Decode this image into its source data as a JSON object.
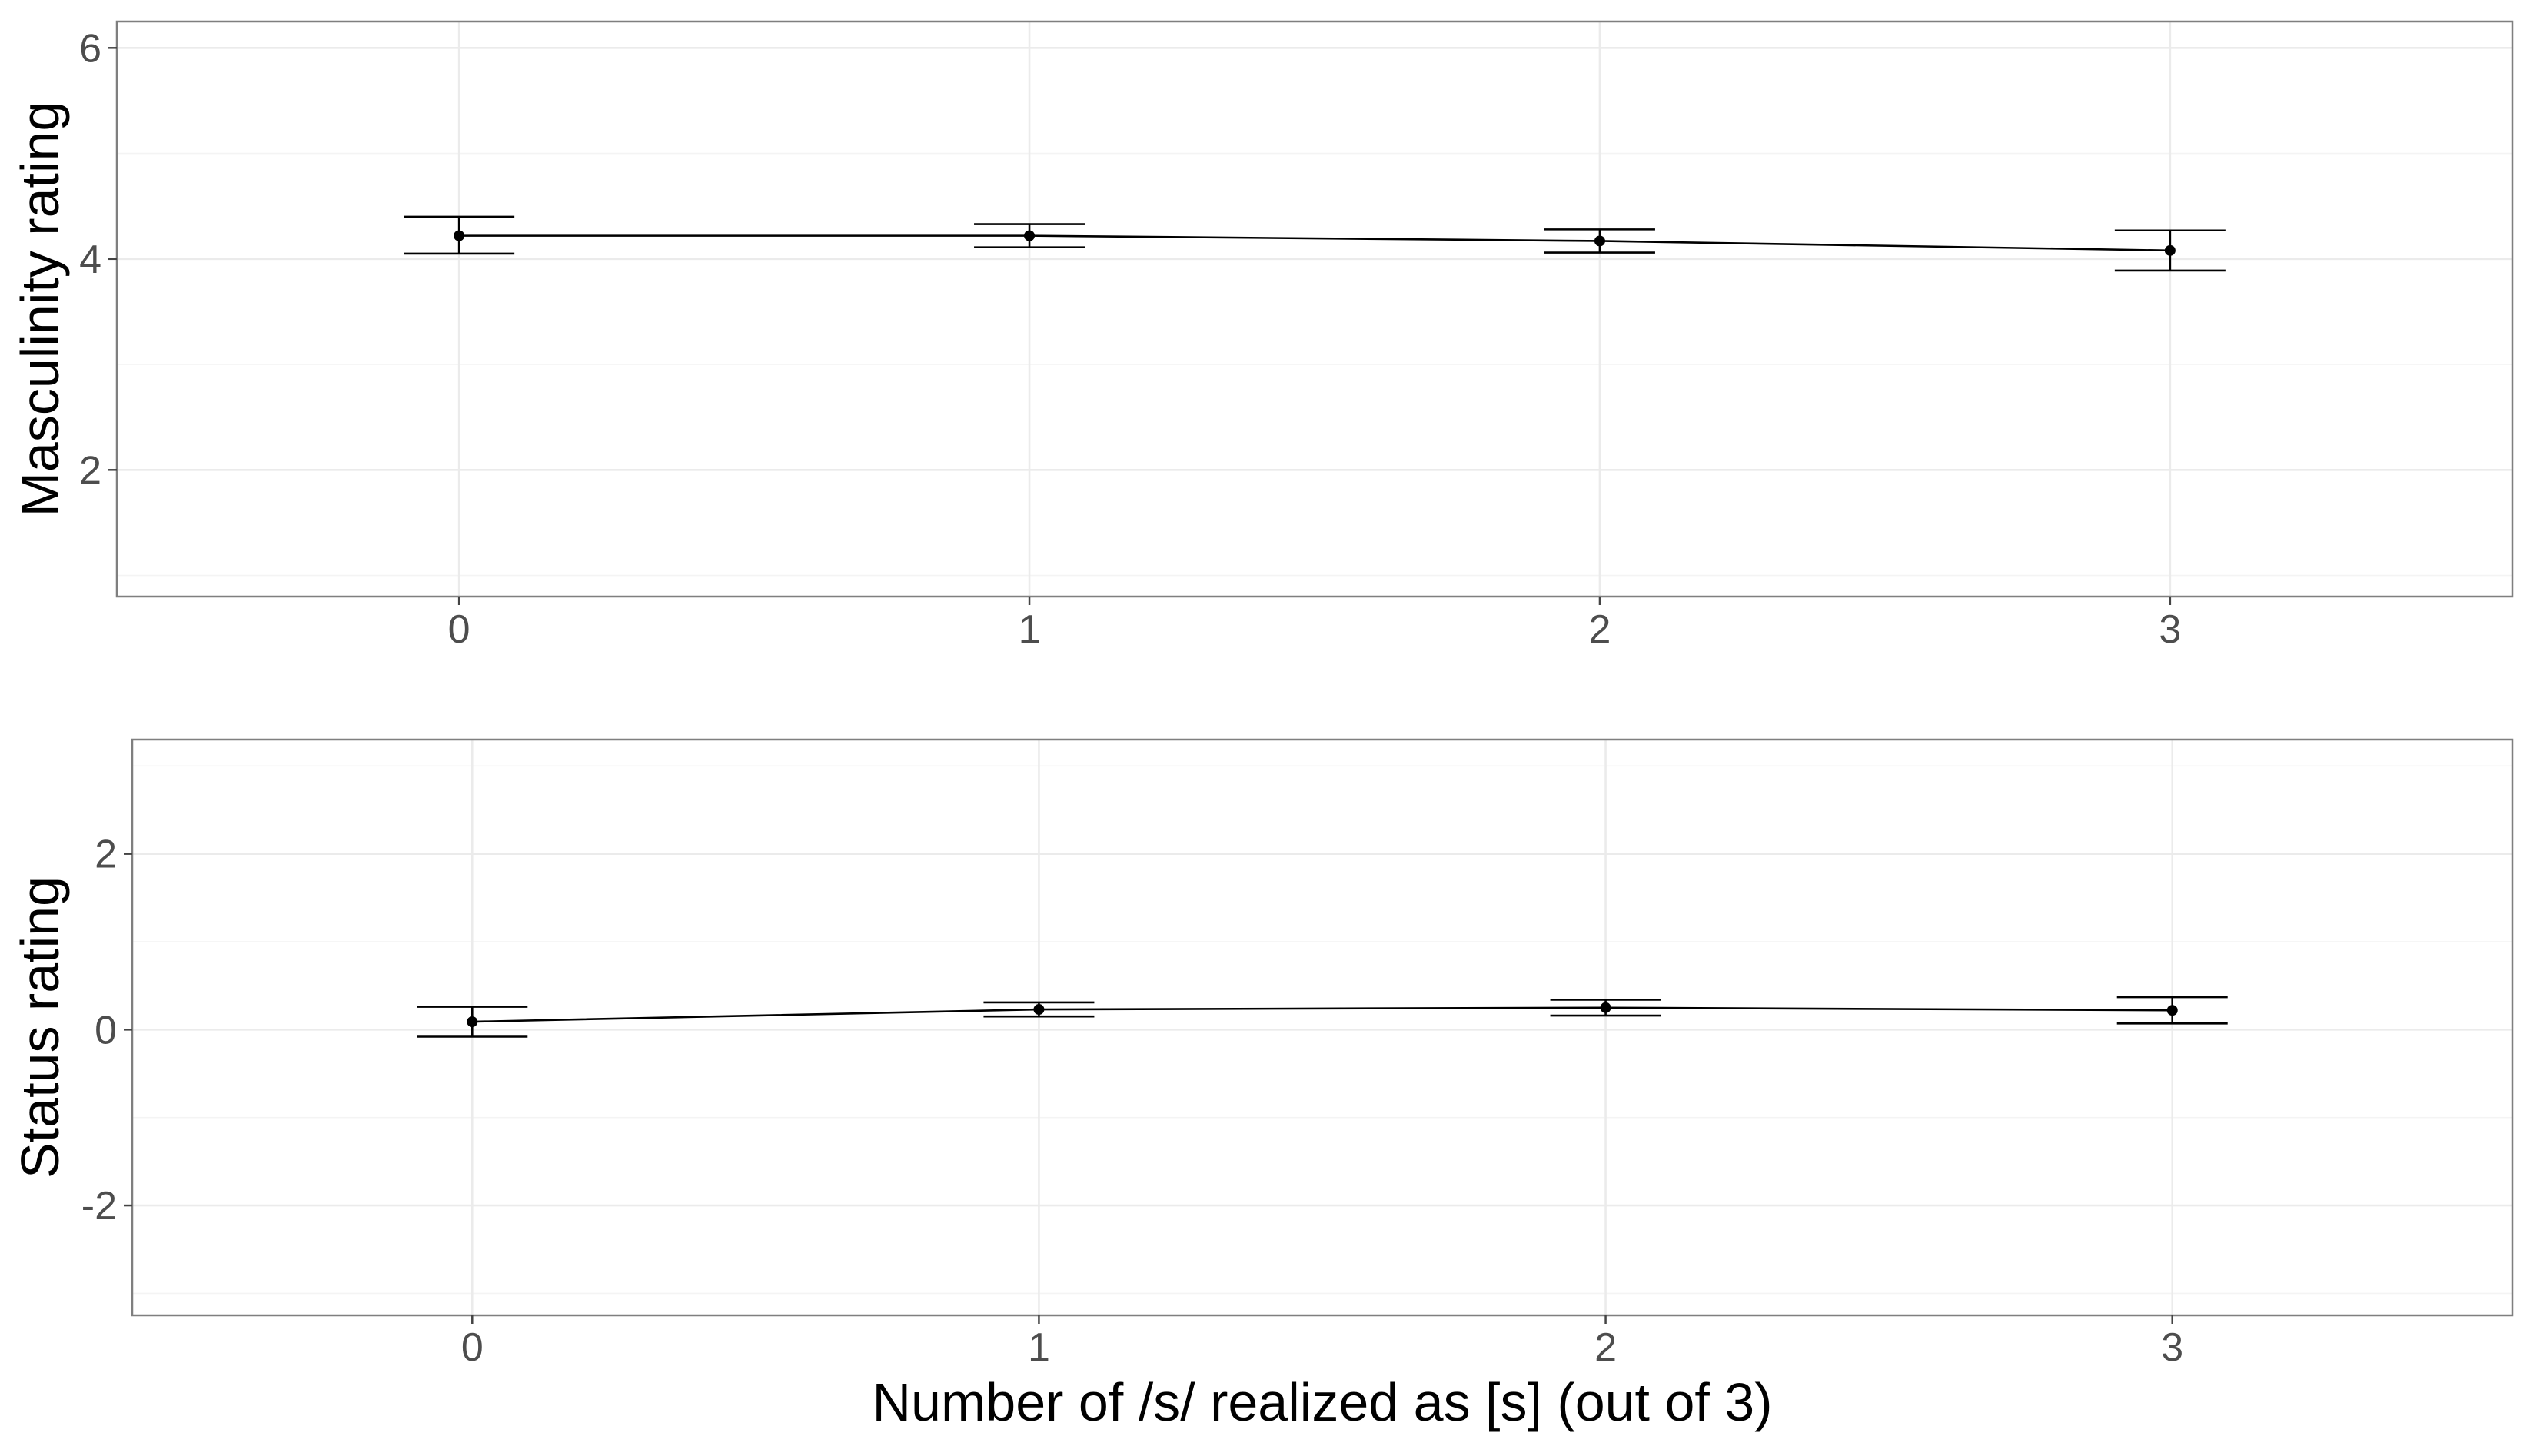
{
  "chart_data": [
    {
      "type": "line",
      "ylabel": "Masculinity rating",
      "xlabel": "",
      "categories": [
        "0",
        "1",
        "2",
        "3"
      ],
      "xlim": [
        -0.6,
        3.6
      ],
      "ylim": [
        0.8,
        6.25
      ],
      "y_ticks": [
        2,
        4,
        6
      ],
      "y_minor_ticks": [
        1,
        3,
        5
      ],
      "grid": true,
      "series": [
        {
          "values": [
            4.22,
            4.22,
            4.17,
            4.08
          ],
          "error_low": [
            4.05,
            4.11,
            4.06,
            3.89
          ],
          "error_high": [
            4.4,
            4.33,
            4.28,
            4.27
          ]
        }
      ]
    },
    {
      "type": "line",
      "ylabel": "Status rating",
      "xlabel": "Number of /s/ realized as [s] (out of 3)",
      "categories": [
        "0",
        "1",
        "2",
        "3"
      ],
      "xlim": [
        -0.6,
        3.6
      ],
      "ylim": [
        -3.25,
        3.3
      ],
      "y_ticks": [
        -2,
        0,
        2
      ],
      "y_ticks_labels": [
        "-2",
        "0",
        "2"
      ],
      "y_minor_ticks": [
        -3,
        -1,
        1,
        3
      ],
      "grid": true,
      "series": [
        {
          "values": [
            0.09,
            0.23,
            0.25,
            0.22
          ],
          "error_low": [
            -0.08,
            0.15,
            0.16,
            0.07
          ],
          "error_high": [
            0.26,
            0.31,
            0.34,
            0.37
          ]
        }
      ]
    }
  ]
}
